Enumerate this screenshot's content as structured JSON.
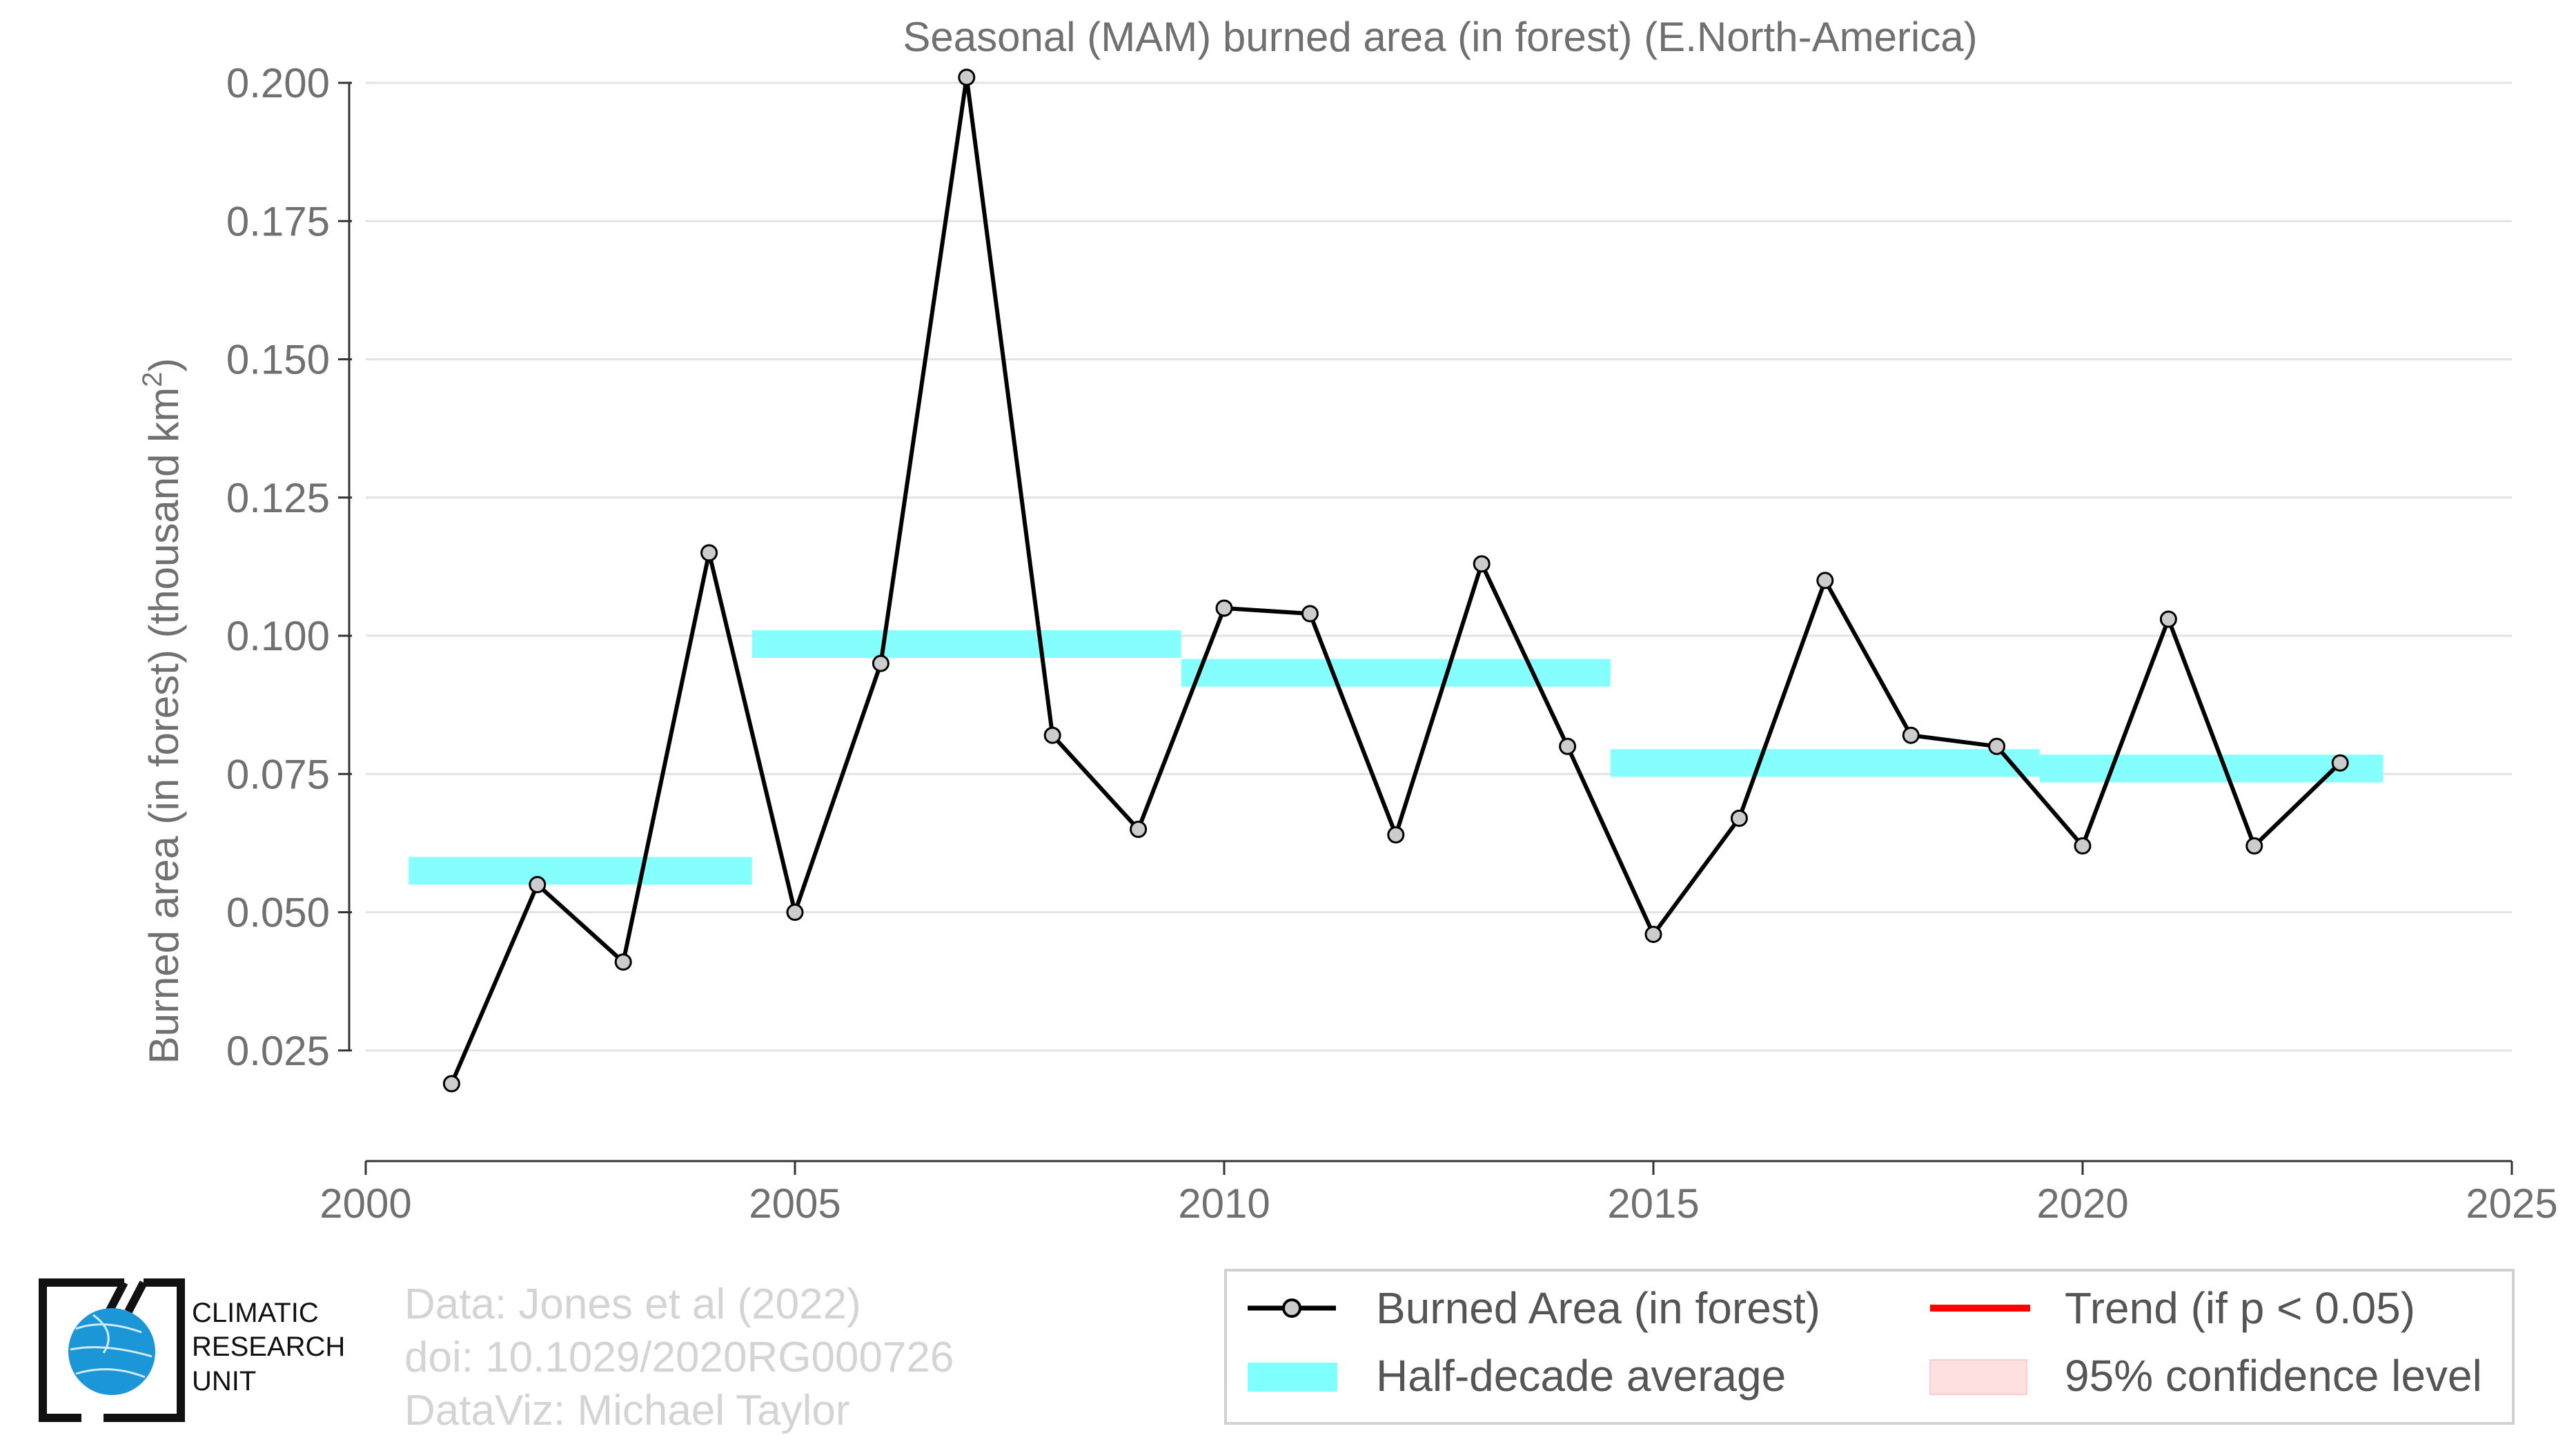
{
  "chart_data": {
    "type": "line",
    "title": "Seasonal (MAM) burned area (in forest) (E.North-America)",
    "ylabel": "Burned area (in forest) (thousand km",
    "ylabel_sup": "2",
    "ylabel_close": ")",
    "xlim": [
      2000,
      2025
    ],
    "ylim": [
      0.005,
      0.2
    ],
    "x_ticks": [
      2000,
      2005,
      2010,
      2015,
      2020,
      2025
    ],
    "y_ticks": [
      0.025,
      0.05,
      0.075,
      0.1,
      0.125,
      0.15,
      0.175,
      0.2
    ],
    "y_tick_labels": [
      "0.025",
      "0.050",
      "0.075",
      "0.100",
      "0.125",
      "0.150",
      "0.175",
      "0.200"
    ],
    "grid": "horizontal",
    "series": [
      {
        "name": "Burned Area (in forest)",
        "type": "line",
        "color": "#000000",
        "marker_color": "#cccccc",
        "x": [
          2001,
          2002,
          2003,
          2004,
          2005,
          2006,
          2007,
          2008,
          2009,
          2010,
          2011,
          2012,
          2013,
          2014,
          2015,
          2016,
          2017,
          2018,
          2019,
          2020,
          2021,
          2022,
          2023
        ],
        "values": [
          0.019,
          0.055,
          0.041,
          0.115,
          0.05,
          0.095,
          0.201,
          0.082,
          0.065,
          0.105,
          0.104,
          0.064,
          0.113,
          0.08,
          0.046,
          0.067,
          0.11,
          0.082,
          0.08,
          0.062,
          0.103,
          0.062,
          0.077
        ]
      },
      {
        "name": "Half-decade average",
        "type": "step-band",
        "color": "#80ffff",
        "segments": [
          {
            "x_start": 2000.5,
            "x_end": 2004.5,
            "value": 0.0575
          },
          {
            "x_start": 2004.5,
            "x_end": 2009.5,
            "value": 0.0985
          },
          {
            "x_start": 2009.5,
            "x_end": 2014.5,
            "value": 0.0933
          },
          {
            "x_start": 2014.5,
            "x_end": 2019.5,
            "value": 0.077
          },
          {
            "x_start": 2019.5,
            "x_end": 2023.5,
            "value": 0.076
          }
        ]
      }
    ],
    "legend": {
      "placement": "bottom-right",
      "items": [
        {
          "label": "Burned Area (in forest)",
          "symbol": "line-marker",
          "color": "#000000"
        },
        {
          "label": "Trend (if p < 0.05)",
          "symbol": "line",
          "color": "#ff0000"
        },
        {
          "label": "Half-decade average",
          "symbol": "band",
          "color": "#80ffff"
        },
        {
          "label": "95% confidence level",
          "symbol": "band",
          "color": "#ffe0e0"
        }
      ]
    }
  },
  "credits": {
    "line1": "Data: Jones et al (2022)",
    "line2": "doi: 10.1029/2020RG000726",
    "line3": "DataViz: Michael Taylor"
  },
  "logo": {
    "line1": "CLIMATIC",
    "line2": "RESEARCH",
    "line3": "UNIT",
    "globe_color": "#1b96d6"
  }
}
